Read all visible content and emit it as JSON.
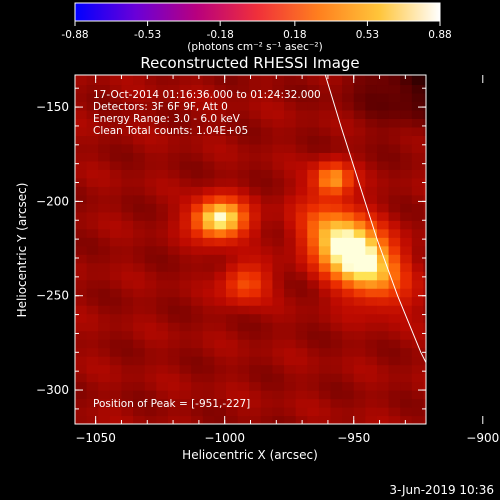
{
  "chart_data": {
    "type": "heatmap",
    "title": "Reconstructed RHESSI Image",
    "xlabel": "Heliocentric X (arcsec)",
    "ylabel": "Heliocentric Y (arcsec)",
    "xlim": [
      -1058,
      -922
    ],
    "ylim": [
      -318,
      -133
    ],
    "xticks": [
      -1050,
      -1000,
      -950,
      -900
    ],
    "yticks": [
      -150,
      -200,
      -250,
      -300
    ],
    "colorbar": {
      "min": -0.88,
      "max": 0.88,
      "ticks": [
        "-0.88",
        "-0.53",
        "-0.18",
        "0.18",
        "0.53",
        "0.88"
      ],
      "unit_text": "(photons cm⁻² s⁻¹ asec⁻²)",
      "stops": [
        "#0000ff",
        "#6a00d8",
        "#b8007e",
        "#f0303a",
        "#ff7f1e",
        "#ffc53a",
        "#ffffff"
      ]
    },
    "annotations": [
      "17-Oct-2014 01:16:36.000 to 01:24:32.000",
      "Detectors: 3F 6F 9F, Att 0",
      "Energy Range: 3.0 - 6.0 keV",
      "Clean    Total counts: 1.04E+05"
    ],
    "peak_label": "Position of Peak = [-951,-227]",
    "sources": [
      {
        "x": -950,
        "y": -227,
        "sigma_x": 9,
        "sigma_y": 16,
        "peak": 0.88,
        "angle_deg": -30
      },
      {
        "x": -1002,
        "y": -209,
        "sigma_x": 7,
        "sigma_y": 7,
        "peak": 0.72
      },
      {
        "x": -958,
        "y": -188,
        "sigma_x": 5,
        "sigma_y": 6,
        "peak": 0.45
      },
      {
        "x": -992,
        "y": -243,
        "sigma_x": 6,
        "sigma_y": 7,
        "peak": 0.3
      }
    ],
    "background_level": 0.17,
    "limb": [
      [
        -961,
        -133
      ],
      [
        -955,
        -160
      ],
      [
        -948,
        -190
      ],
      [
        -941,
        -220
      ],
      [
        -933,
        -250
      ],
      [
        -924,
        -280
      ],
      [
        -913,
        -310
      ],
      [
        -909,
        -318
      ]
    ]
  },
  "footer": {
    "date": "3-Jun-2019 10:36"
  }
}
